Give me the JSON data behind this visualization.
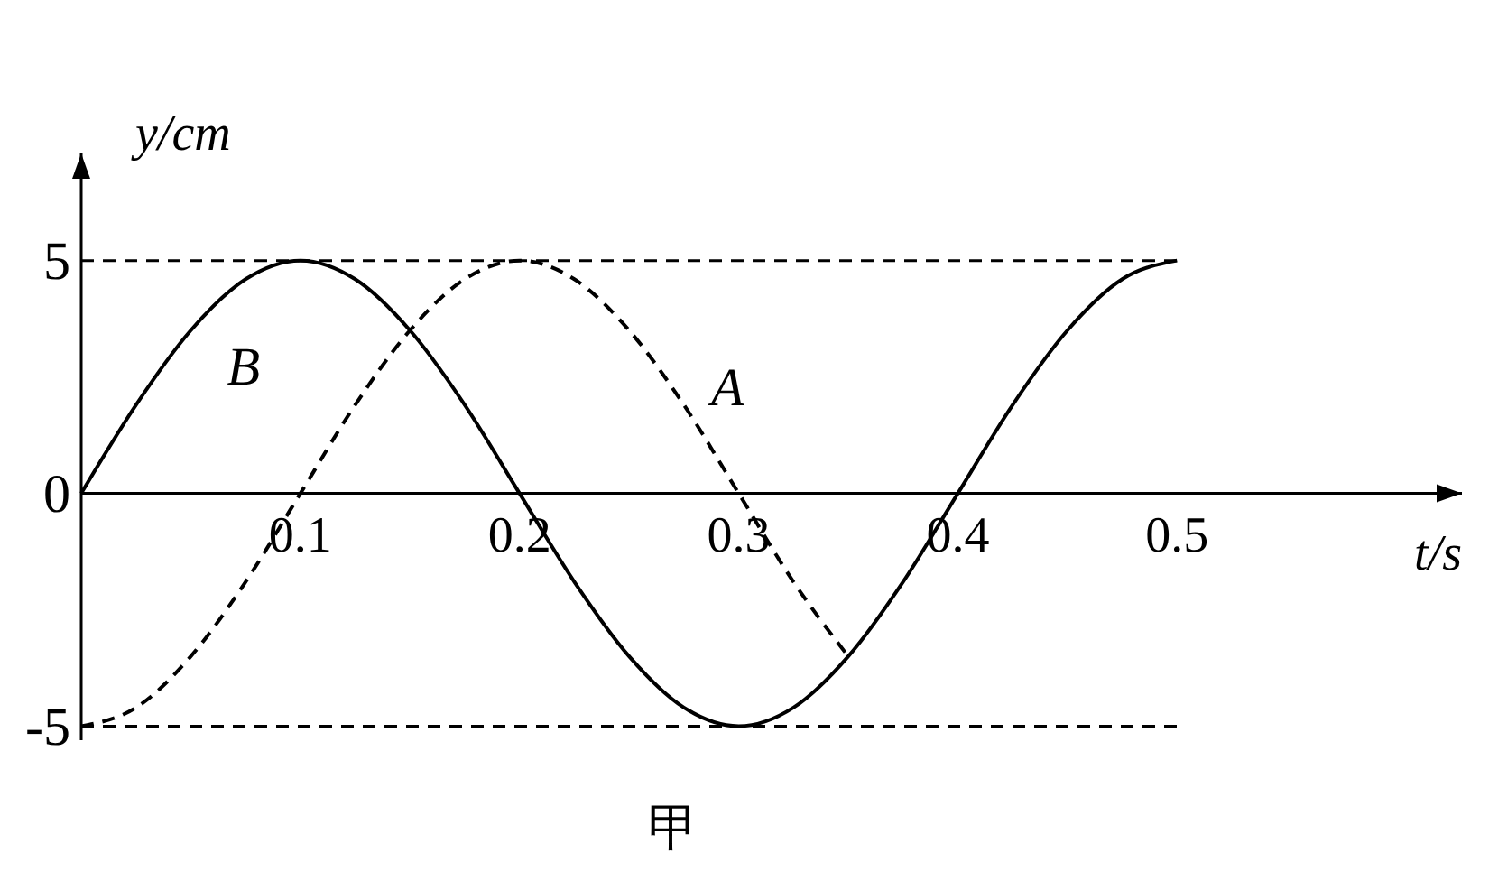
{
  "chart_data": {
    "type": "line",
    "xlabel": "t/s",
    "ylabel": "y/cm",
    "annotations": [
      "甲"
    ],
    "xlim": [
      0,
      0.63
    ],
    "ylim": [
      -5.3,
      7.3
    ],
    "xticks": [
      0.1,
      0.2,
      0.3,
      0.4,
      0.5
    ],
    "yticks": [
      {
        "value": -5,
        "label": "-5"
      },
      0,
      5
    ],
    "grid": false,
    "ref_lines": [
      {
        "axis": "y",
        "value": 5,
        "line_style": "dashed",
        "color": "#000000"
      },
      {
        "axis": "y",
        "value": -5,
        "line_style": "dashed",
        "color": "#000000"
      }
    ],
    "series": [
      {
        "name": "B",
        "color": "#000000",
        "line_style": "solid",
        "x": [
          0,
          0.025,
          0.05,
          0.075,
          0.1,
          0.125,
          0.15,
          0.175,
          0.2,
          0.225,
          0.25,
          0.275,
          0.3,
          0.325,
          0.35,
          0.375,
          0.4,
          0.425,
          0.45,
          0.475,
          0.5
        ],
        "values": [
          0,
          1.9,
          3.5,
          4.6,
          5,
          4.6,
          3.5,
          1.9,
          0,
          -1.9,
          -3.5,
          -4.6,
          -5,
          -4.6,
          -3.5,
          -1.9,
          0,
          1.9,
          3.5,
          4.6,
          5
        ]
      },
      {
        "name": "A",
        "color": "#000000",
        "line_style": "dashed",
        "x": [
          0,
          0.025,
          0.05,
          0.075,
          0.1,
          0.125,
          0.15,
          0.175,
          0.2,
          0.225,
          0.25,
          0.275,
          0.3,
          0.325,
          0.35
        ],
        "values": [
          -5,
          -4.6,
          -3.5,
          -1.9,
          0,
          1.9,
          3.5,
          4.6,
          5,
          4.6,
          3.5,
          1.9,
          0,
          -1.9,
          -3.5
        ]
      }
    ]
  }
}
